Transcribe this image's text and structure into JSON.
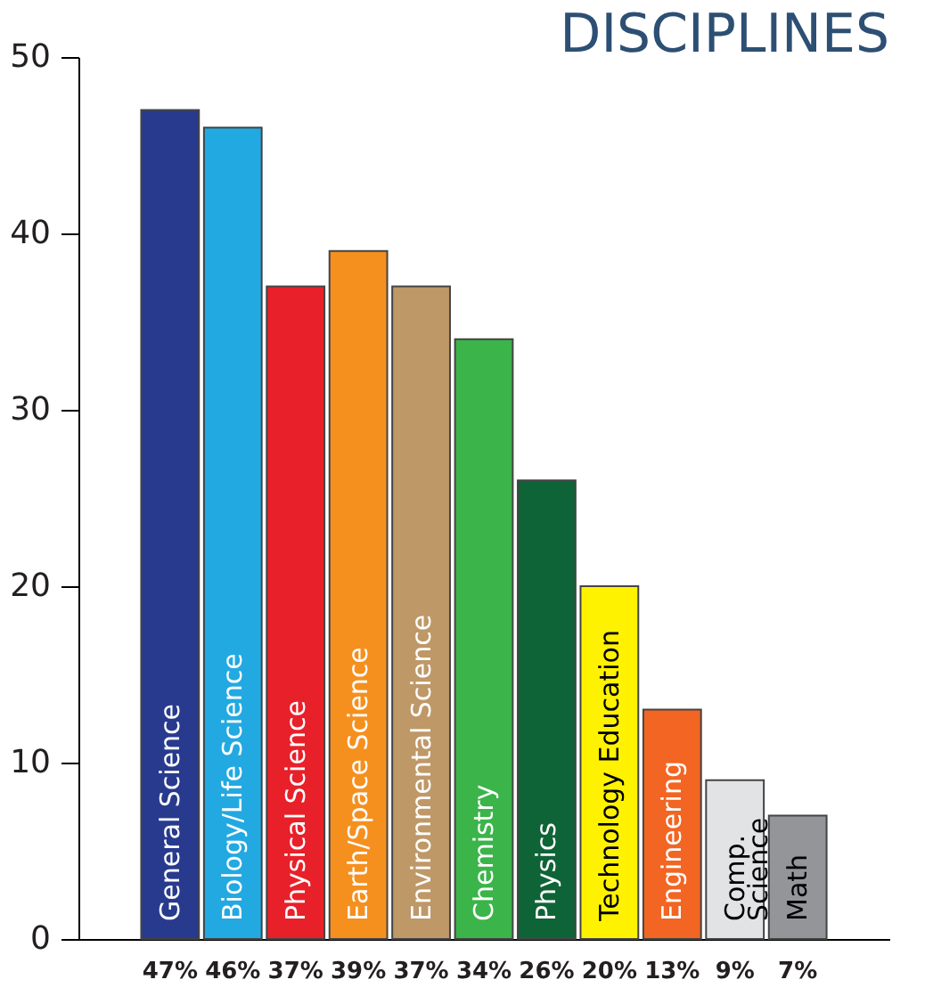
{
  "chart_data": {
    "type": "bar",
    "title": "DISCIPLINES",
    "categories": [
      "General Science",
      "Biology/Life Science",
      "Physical Science",
      "Earth/Space Science",
      "Environmental Science",
      "Chemistry",
      "Physics",
      "Technology Education",
      "Engineering",
      "Comp.\nScience",
      "Math"
    ],
    "values": [
      47,
      46,
      37,
      39,
      37,
      34,
      26,
      20,
      13,
      9,
      7
    ],
    "colors": [
      "#283a8e",
      "#22a9e1",
      "#e8202a",
      "#f5901f",
      "#bf9868",
      "#3bb44a",
      "#0f6437",
      "#fff200",
      "#f26522",
      "#e2e3e5",
      "#939598"
    ],
    "value_labels": [
      "47%",
      "46%",
      "37%",
      "39%",
      "37%",
      "34%",
      "26%",
      "20%",
      "13%",
      "9%",
      "7%"
    ],
    "ylim": [
      0,
      50
    ],
    "yticks": [
      0,
      10,
      20,
      30,
      40,
      50
    ],
    "grid": false
  }
}
